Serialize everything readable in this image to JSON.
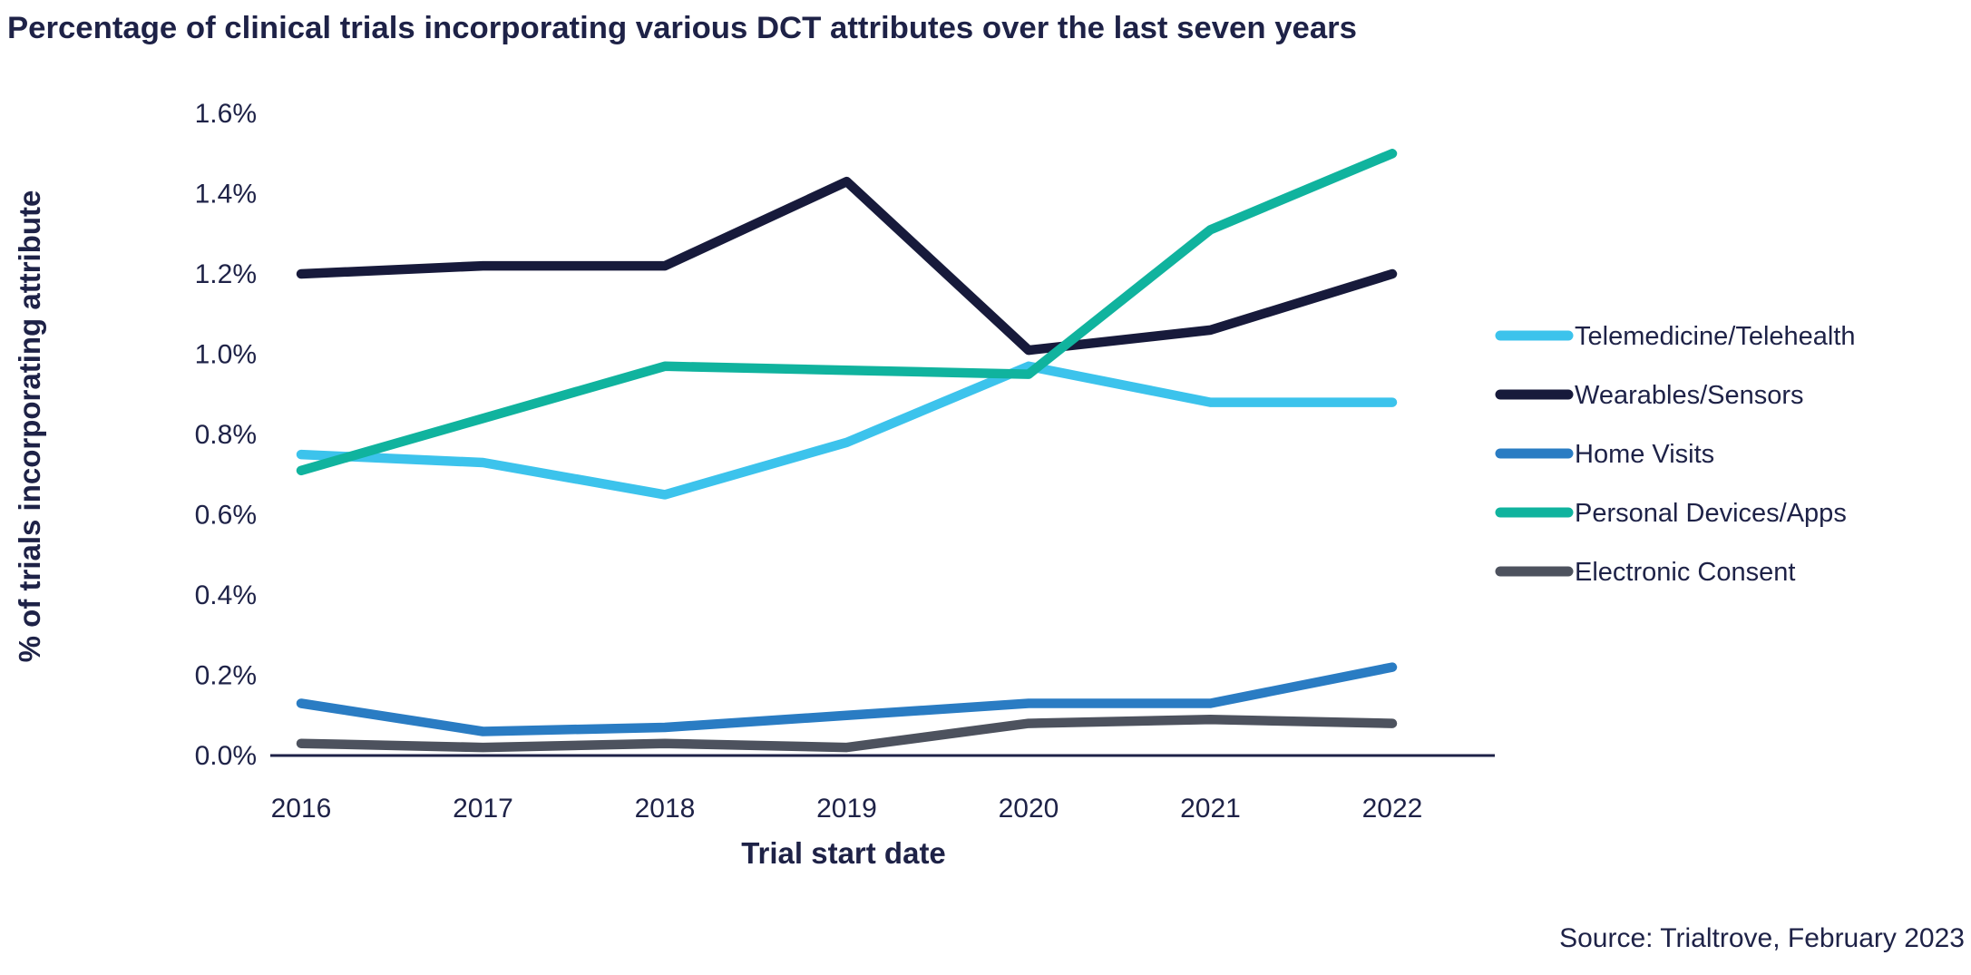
{
  "title": "Percentage of clinical trials incorporating various DCT attributes over the last seven years",
  "source_note": "Source: Trialtrove, February 2023",
  "colors": {
    "text_navy": "#1e2247",
    "axis_line": "#1e2247",
    "background": "#ffffff"
  },
  "chart": {
    "y_axis_title": "% of trials incorporating attribute",
    "x_axis_title": "Trial start date",
    "y_tick_labels": [
      "0.0%",
      "0.2%",
      "0.4%",
      "0.6%",
      "0.8%",
      "1.0%",
      "1.2%",
      "1.4%",
      "1.6%"
    ]
  },
  "chart_data": {
    "type": "line",
    "title": "Percentage of clinical trials incorporating various DCT attributes over the last seven years",
    "xlabel": "Trial start date",
    "ylabel": "% of trials incorporating attribute",
    "categories": [
      "2016",
      "2017",
      "2018",
      "2019",
      "2020",
      "2021",
      "2022"
    ],
    "y_unit": "percent",
    "ylim": [
      0.0,
      1.6
    ],
    "y_tick_step": 0.2,
    "grid": false,
    "legend_position": "right",
    "series": [
      {
        "name": "Telemedicine/Telehealth",
        "slug": "telemedicine-telehealth",
        "color": "#3cc3ec",
        "values": [
          0.75,
          0.73,
          0.65,
          0.78,
          0.97,
          0.88,
          0.88
        ]
      },
      {
        "name": "Wearables/Sensors",
        "slug": "wearables-sensors",
        "color": "#171a3b",
        "values": [
          1.2,
          1.22,
          1.22,
          1.43,
          1.01,
          1.06,
          1.2
        ]
      },
      {
        "name": "Home Visits",
        "slug": "home-visits",
        "color": "#2a7cc3",
        "values": [
          0.13,
          0.06,
          0.07,
          0.1,
          0.13,
          0.13,
          0.22
        ]
      },
      {
        "name": "Personal Devices/Apps",
        "slug": "personal-devices-apps",
        "color": "#10b39e",
        "values": [
          0.71,
          0.84,
          0.97,
          0.96,
          0.95,
          1.31,
          1.5
        ]
      },
      {
        "name": "Electronic Consent",
        "slug": "electronic-consent",
        "color": "#4d525e",
        "values": [
          0.03,
          0.02,
          0.03,
          0.02,
          0.08,
          0.09,
          0.08
        ]
      }
    ]
  }
}
